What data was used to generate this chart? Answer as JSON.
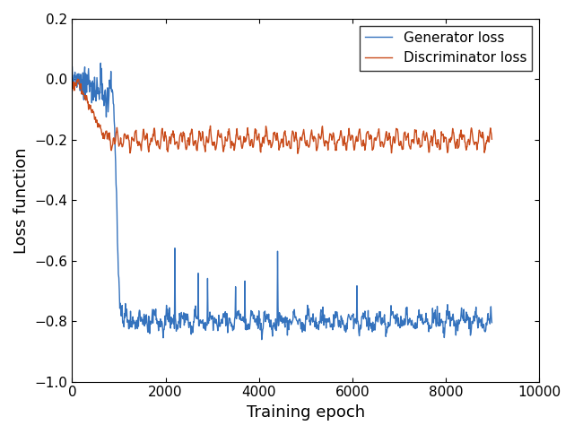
{
  "title": "",
  "xlabel": "Training epoch",
  "ylabel": "Loss function",
  "xlim": [
    0,
    10000
  ],
  "ylim": [
    -1,
    0.2
  ],
  "xticks": [
    0,
    2000,
    4000,
    6000,
    8000,
    10000
  ],
  "yticks": [
    -1,
    -0.8,
    -0.6,
    -0.4,
    -0.2,
    0,
    0.2
  ],
  "generator_color": "#3472BD",
  "discriminator_color": "#C94B1A",
  "legend_labels": [
    "Generator loss",
    "Discriminator loss"
  ],
  "seed": 7,
  "n_points": 9000,
  "plot_every": 10,
  "figsize": [
    6.4,
    4.84
  ],
  "dpi": 100,
  "linewidth": 1.0
}
